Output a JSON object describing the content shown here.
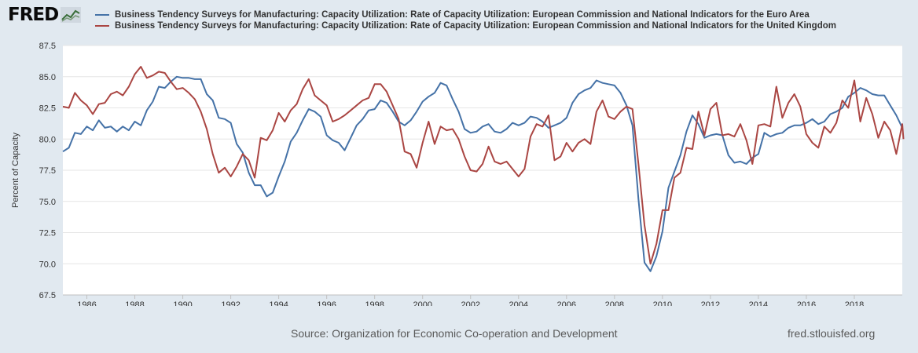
{
  "header": {
    "logo_text": "FRED",
    "legend": [
      {
        "label": "Business Tendency Surveys for Manufacturing: Capacity Utilization: Rate of Capacity Utilization: European Commission and National Indicators for the Euro Area",
        "color": "#4572a7"
      },
      {
        "label": "Business Tendency Surveys for Manufacturing: Capacity Utilization: Rate of Capacity Utilization: European Commission and National Indicators for the United Kingdom",
        "color": "#aa4643"
      }
    ]
  },
  "footer": {
    "source": "Source: Organization for Economic Co-operation and Development",
    "site": "fred.stlouisfed.org"
  },
  "chart_data": {
    "type": "line",
    "ylabel": "Percent of Capacity",
    "xlabel": "",
    "xlim": [
      1985,
      2020
    ],
    "ylim": [
      67.5,
      87.5
    ],
    "y_ticks": [
      67.5,
      70.0,
      72.5,
      75.0,
      77.5,
      80.0,
      82.5,
      85.0,
      87.5
    ],
    "x_ticks": [
      1986,
      1988,
      1990,
      1992,
      1994,
      1996,
      1998,
      2000,
      2002,
      2004,
      2006,
      2008,
      2010,
      2012,
      2014,
      2016,
      2018
    ],
    "grid": true,
    "legend_position": "top",
    "series": [
      {
        "name": "Business Tendency Surveys for Manufacturing: Capacity Utilization: Rate of Capacity Utilization: European Commission and National Indicators for the Euro Area",
        "color": "#4572a7",
        "points": [
          [
            1985.0,
            79.0
          ],
          [
            1985.25,
            79.3
          ],
          [
            1985.5,
            80.5
          ],
          [
            1985.75,
            80.4
          ],
          [
            1986.0,
            81.0
          ],
          [
            1986.25,
            80.7
          ],
          [
            1986.5,
            81.5
          ],
          [
            1986.75,
            80.9
          ],
          [
            1987.0,
            81.0
          ],
          [
            1987.25,
            80.6
          ],
          [
            1987.5,
            81.0
          ],
          [
            1987.75,
            80.7
          ],
          [
            1988.0,
            81.4
          ],
          [
            1988.25,
            81.1
          ],
          [
            1988.5,
            82.3
          ],
          [
            1988.75,
            83.0
          ],
          [
            1989.0,
            84.2
          ],
          [
            1989.25,
            84.1
          ],
          [
            1989.5,
            84.6
          ],
          [
            1989.75,
            85.0
          ],
          [
            1990.0,
            84.9
          ],
          [
            1990.25,
            84.9
          ],
          [
            1990.5,
            84.8
          ],
          [
            1990.75,
            84.8
          ],
          [
            1991.0,
            83.6
          ],
          [
            1991.25,
            83.1
          ],
          [
            1991.5,
            81.7
          ],
          [
            1991.75,
            81.6
          ],
          [
            1992.0,
            81.3
          ],
          [
            1992.25,
            79.6
          ],
          [
            1992.5,
            78.9
          ],
          [
            1992.75,
            77.3
          ],
          [
            1993.0,
            76.3
          ],
          [
            1993.25,
            76.3
          ],
          [
            1993.5,
            75.4
          ],
          [
            1993.75,
            75.7
          ],
          [
            1994.0,
            77.0
          ],
          [
            1994.25,
            78.2
          ],
          [
            1994.5,
            79.8
          ],
          [
            1994.75,
            80.5
          ],
          [
            1995.0,
            81.5
          ],
          [
            1995.25,
            82.4
          ],
          [
            1995.5,
            82.2
          ],
          [
            1995.75,
            81.8
          ],
          [
            1996.0,
            80.3
          ],
          [
            1996.25,
            79.9
          ],
          [
            1996.5,
            79.7
          ],
          [
            1996.75,
            79.1
          ],
          [
            1997.0,
            80.1
          ],
          [
            1997.25,
            81.1
          ],
          [
            1997.5,
            81.6
          ],
          [
            1997.75,
            82.3
          ],
          [
            1998.0,
            82.4
          ],
          [
            1998.25,
            83.1
          ],
          [
            1998.5,
            82.9
          ],
          [
            1998.75,
            82.2
          ],
          [
            1999.0,
            81.4
          ],
          [
            1999.25,
            81.1
          ],
          [
            1999.5,
            81.5
          ],
          [
            1999.75,
            82.2
          ],
          [
            2000.0,
            83.0
          ],
          [
            2000.25,
            83.4
          ],
          [
            2000.5,
            83.7
          ],
          [
            2000.75,
            84.5
          ],
          [
            2001.0,
            84.3
          ],
          [
            2001.25,
            83.2
          ],
          [
            2001.5,
            82.2
          ],
          [
            2001.75,
            80.8
          ],
          [
            2002.0,
            80.5
          ],
          [
            2002.25,
            80.6
          ],
          [
            2002.5,
            81.0
          ],
          [
            2002.75,
            81.2
          ],
          [
            2003.0,
            80.6
          ],
          [
            2003.25,
            80.5
          ],
          [
            2003.5,
            80.8
          ],
          [
            2003.75,
            81.3
          ],
          [
            2004.0,
            81.1
          ],
          [
            2004.25,
            81.3
          ],
          [
            2004.5,
            81.8
          ],
          [
            2004.75,
            81.7
          ],
          [
            2005.0,
            81.4
          ],
          [
            2005.25,
            80.9
          ],
          [
            2005.5,
            81.1
          ],
          [
            2005.75,
            81.3
          ],
          [
            2006.0,
            81.7
          ],
          [
            2006.25,
            82.9
          ],
          [
            2006.5,
            83.6
          ],
          [
            2006.75,
            83.9
          ],
          [
            2007.0,
            84.1
          ],
          [
            2007.25,
            84.7
          ],
          [
            2007.5,
            84.5
          ],
          [
            2007.75,
            84.4
          ],
          [
            2008.0,
            84.3
          ],
          [
            2008.25,
            83.7
          ],
          [
            2008.5,
            82.7
          ],
          [
            2008.75,
            81.1
          ],
          [
            2009.0,
            75.2
          ],
          [
            2009.25,
            70.1
          ],
          [
            2009.5,
            69.4
          ],
          [
            2009.75,
            70.6
          ],
          [
            2010.0,
            72.6
          ],
          [
            2010.25,
            76.1
          ],
          [
            2010.5,
            77.4
          ],
          [
            2010.75,
            78.7
          ],
          [
            2011.0,
            80.6
          ],
          [
            2011.25,
            81.9
          ],
          [
            2011.5,
            81.2
          ],
          [
            2011.75,
            80.1
          ],
          [
            2012.0,
            80.3
          ],
          [
            2012.25,
            80.4
          ],
          [
            2012.5,
            80.3
          ],
          [
            2012.75,
            78.7
          ],
          [
            2013.0,
            78.1
          ],
          [
            2013.25,
            78.2
          ],
          [
            2013.5,
            78.0
          ],
          [
            2013.75,
            78.5
          ],
          [
            2014.0,
            78.8
          ],
          [
            2014.25,
            80.5
          ],
          [
            2014.5,
            80.2
          ],
          [
            2014.75,
            80.4
          ],
          [
            2015.0,
            80.5
          ],
          [
            2015.25,
            80.9
          ],
          [
            2015.5,
            81.1
          ],
          [
            2015.75,
            81.1
          ],
          [
            2016.0,
            81.3
          ],
          [
            2016.25,
            81.6
          ],
          [
            2016.5,
            81.2
          ],
          [
            2016.75,
            81.4
          ],
          [
            2017.0,
            82.0
          ],
          [
            2017.25,
            82.2
          ],
          [
            2017.5,
            82.5
          ],
          [
            2017.75,
            83.4
          ],
          [
            2018.0,
            83.7
          ],
          [
            2018.25,
            84.1
          ],
          [
            2018.5,
            83.9
          ],
          [
            2018.75,
            83.6
          ],
          [
            2019.0,
            83.5
          ],
          [
            2019.25,
            83.5
          ],
          [
            2019.5,
            82.7
          ],
          [
            2019.75,
            81.9
          ],
          [
            2020.0,
            80.9
          ]
        ]
      },
      {
        "name": "Business Tendency Surveys for Manufacturing: Capacity Utilization: Rate of Capacity Utilization: European Commission and National Indicators for the United Kingdom",
        "color": "#aa4643",
        "points": [
          [
            1985.0,
            82.6
          ],
          [
            1985.25,
            82.5
          ],
          [
            1985.5,
            83.7
          ],
          [
            1985.75,
            83.1
          ],
          [
            1986.0,
            82.7
          ],
          [
            1986.25,
            82.0
          ],
          [
            1986.5,
            82.8
          ],
          [
            1986.75,
            82.9
          ],
          [
            1987.0,
            83.6
          ],
          [
            1987.25,
            83.8
          ],
          [
            1987.5,
            83.5
          ],
          [
            1987.75,
            84.2
          ],
          [
            1988.0,
            85.2
          ],
          [
            1988.25,
            85.8
          ],
          [
            1988.5,
            84.9
          ],
          [
            1988.75,
            85.1
          ],
          [
            1989.0,
            85.4
          ],
          [
            1989.25,
            85.3
          ],
          [
            1989.5,
            84.6
          ],
          [
            1989.75,
            84.0
          ],
          [
            1990.0,
            84.1
          ],
          [
            1990.25,
            83.7
          ],
          [
            1990.5,
            83.2
          ],
          [
            1990.75,
            82.2
          ],
          [
            1991.0,
            80.8
          ],
          [
            1991.25,
            78.8
          ],
          [
            1991.5,
            77.3
          ],
          [
            1991.75,
            77.7
          ],
          [
            1992.0,
            77.0
          ],
          [
            1992.25,
            77.8
          ],
          [
            1992.5,
            78.8
          ],
          [
            1992.75,
            78.3
          ],
          [
            1993.0,
            76.9
          ],
          [
            1993.25,
            80.1
          ],
          [
            1993.5,
            79.9
          ],
          [
            1993.75,
            80.7
          ],
          [
            1994.0,
            82.1
          ],
          [
            1994.25,
            81.4
          ],
          [
            1994.5,
            82.3
          ],
          [
            1994.75,
            82.8
          ],
          [
            1995.0,
            84.0
          ],
          [
            1995.25,
            84.8
          ],
          [
            1995.5,
            83.5
          ],
          [
            1995.75,
            83.1
          ],
          [
            1996.0,
            82.7
          ],
          [
            1996.25,
            81.4
          ],
          [
            1996.5,
            81.6
          ],
          [
            1996.75,
            81.9
          ],
          [
            1997.0,
            82.3
          ],
          [
            1997.25,
            82.7
          ],
          [
            1997.5,
            83.1
          ],
          [
            1997.75,
            83.3
          ],
          [
            1998.0,
            84.4
          ],
          [
            1998.25,
            84.4
          ],
          [
            1998.5,
            83.8
          ],
          [
            1998.75,
            82.7
          ],
          [
            1999.0,
            81.6
          ],
          [
            1999.25,
            79.0
          ],
          [
            1999.5,
            78.8
          ],
          [
            1999.75,
            77.7
          ],
          [
            2000.0,
            79.7
          ],
          [
            2000.25,
            81.4
          ],
          [
            2000.5,
            79.6
          ],
          [
            2000.75,
            81.0
          ],
          [
            2001.0,
            80.7
          ],
          [
            2001.25,
            80.8
          ],
          [
            2001.5,
            80.0
          ],
          [
            2001.75,
            78.6
          ],
          [
            2002.0,
            77.5
          ],
          [
            2002.25,
            77.4
          ],
          [
            2002.5,
            78.0
          ],
          [
            2002.75,
            79.4
          ],
          [
            2003.0,
            78.2
          ],
          [
            2003.25,
            78.0
          ],
          [
            2003.5,
            78.2
          ],
          [
            2003.75,
            77.6
          ],
          [
            2004.0,
            77.0
          ],
          [
            2004.25,
            77.6
          ],
          [
            2004.5,
            80.2
          ],
          [
            2004.75,
            81.2
          ],
          [
            2005.0,
            81.0
          ],
          [
            2005.25,
            81.9
          ],
          [
            2005.5,
            78.3
          ],
          [
            2005.75,
            78.6
          ],
          [
            2006.0,
            79.7
          ],
          [
            2006.25,
            79.0
          ],
          [
            2006.5,
            79.7
          ],
          [
            2006.75,
            80.0
          ],
          [
            2007.0,
            79.6
          ],
          [
            2007.25,
            82.2
          ],
          [
            2007.5,
            83.1
          ],
          [
            2007.75,
            81.8
          ],
          [
            2008.0,
            81.6
          ],
          [
            2008.25,
            82.2
          ],
          [
            2008.5,
            82.6
          ],
          [
            2008.75,
            82.4
          ],
          [
            2009.0,
            78.0
          ],
          [
            2009.25,
            73.1
          ],
          [
            2009.5,
            70.0
          ],
          [
            2009.75,
            71.6
          ],
          [
            2010.0,
            74.3
          ],
          [
            2010.25,
            74.3
          ],
          [
            2010.5,
            76.9
          ],
          [
            2010.75,
            77.3
          ],
          [
            2011.0,
            79.3
          ],
          [
            2011.25,
            79.2
          ],
          [
            2011.5,
            82.2
          ],
          [
            2011.75,
            80.3
          ],
          [
            2012.0,
            82.4
          ],
          [
            2012.25,
            82.9
          ],
          [
            2012.5,
            80.3
          ],
          [
            2012.75,
            80.4
          ],
          [
            2013.0,
            80.2
          ],
          [
            2013.25,
            81.2
          ],
          [
            2013.5,
            79.9
          ],
          [
            2013.75,
            78.0
          ],
          [
            2014.0,
            81.1
          ],
          [
            2014.25,
            81.2
          ],
          [
            2014.5,
            81.0
          ],
          [
            2014.75,
            84.2
          ],
          [
            2015.0,
            81.7
          ],
          [
            2015.25,
            82.9
          ],
          [
            2015.5,
            83.6
          ],
          [
            2015.75,
            82.6
          ],
          [
            2016.0,
            80.4
          ],
          [
            2016.25,
            79.7
          ],
          [
            2016.5,
            79.3
          ],
          [
            2016.75,
            81.0
          ],
          [
            2017.0,
            80.5
          ],
          [
            2017.25,
            81.3
          ],
          [
            2017.5,
            83.1
          ],
          [
            2017.75,
            82.5
          ],
          [
            2018.0,
            84.7
          ],
          [
            2018.25,
            81.4
          ],
          [
            2018.5,
            83.3
          ],
          [
            2018.75,
            82.0
          ],
          [
            2019.0,
            80.1
          ],
          [
            2019.25,
            81.4
          ],
          [
            2019.5,
            80.7
          ],
          [
            2019.75,
            78.8
          ],
          [
            2020.0,
            81.2
          ],
          [
            2020.05,
            80.0
          ]
        ]
      }
    ]
  }
}
